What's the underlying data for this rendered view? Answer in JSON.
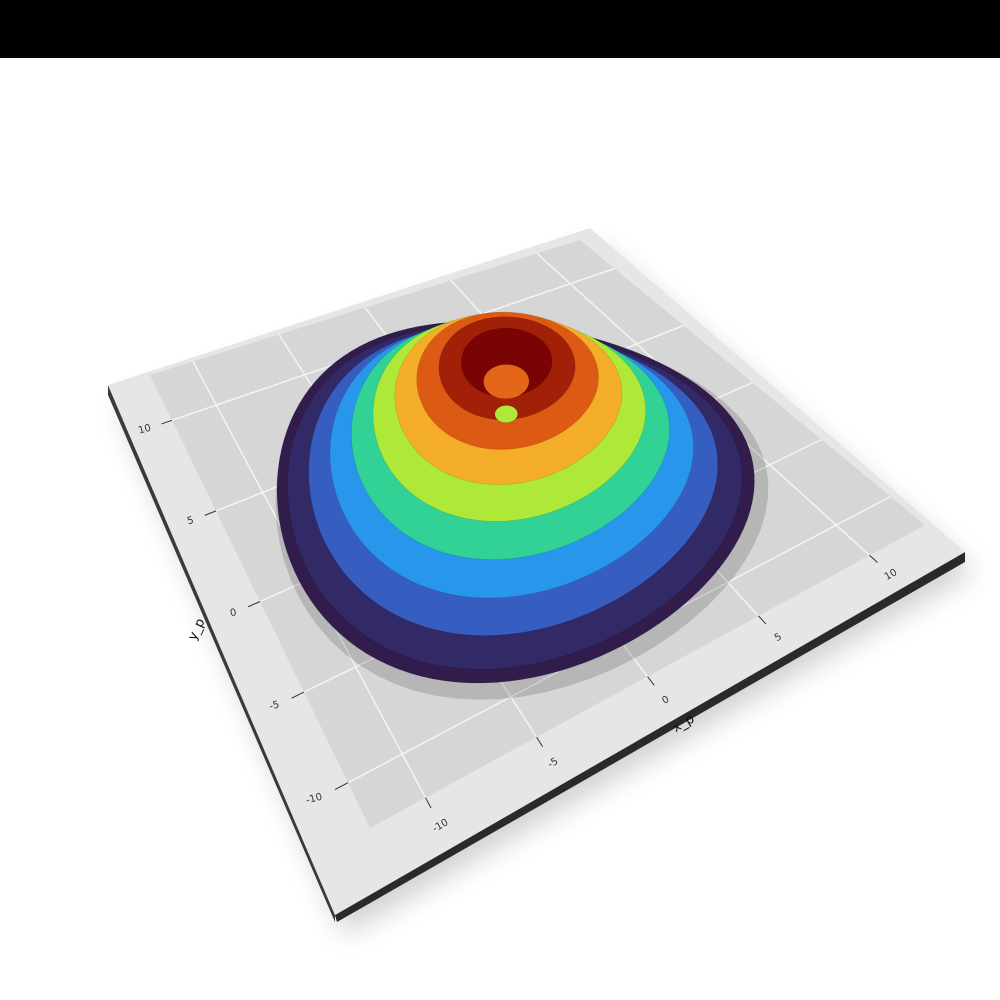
{
  "chart_data": {
    "type": "radial_surface3d",
    "x_label": "x_p",
    "y_label": "y_p",
    "xlim": [
      -12.5,
      12.5
    ],
    "ylim": [
      -12.5,
      12.5
    ],
    "xticks": [
      -10,
      -5,
      0,
      5,
      10
    ],
    "yticks": [
      -10,
      -5,
      0,
      5,
      10
    ],
    "zlim": [
      0,
      10
    ],
    "grid": true,
    "colormap": "turbo",
    "radius": [
      0.5,
      1,
      2,
      3,
      4,
      5,
      6,
      7,
      8,
      9,
      10,
      10.5
    ],
    "values": [
      6,
      8.5,
      10,
      9.6,
      8.7,
      7.4,
      6,
      4.5,
      3,
      1.6,
      0.5,
      0.2
    ]
  }
}
